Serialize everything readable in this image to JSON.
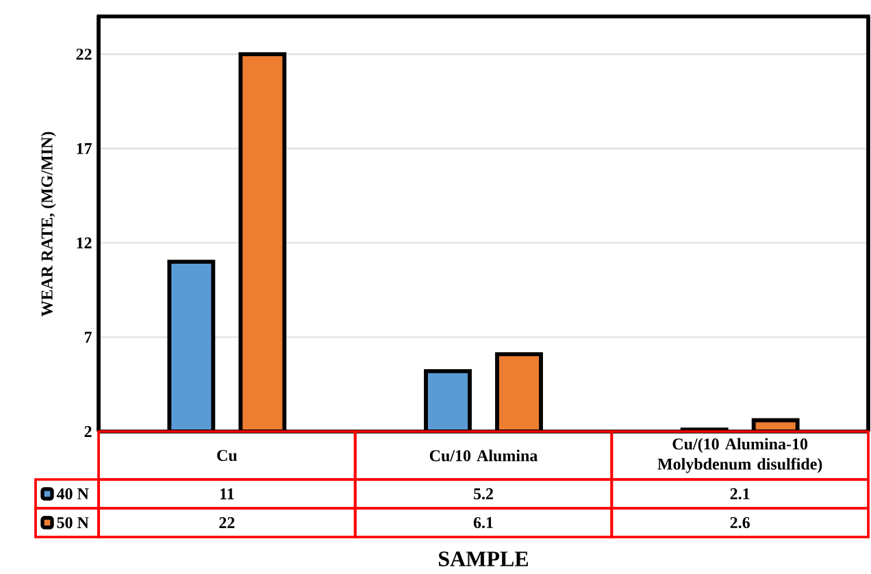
{
  "chart_data": {
    "type": "bar",
    "ylabel": "WEAR RATE, (MG/MIN)",
    "xlabel": "SAMPLE",
    "categories": [
      "Cu",
      "Cu/10 Alumina",
      "Cu/(10 Alumina-10 Molybdenum disulfide)"
    ],
    "series": [
      {
        "name": "40 N",
        "color": "#5b9bd5",
        "values": [
          11,
          5.2,
          2.1
        ]
      },
      {
        "name": "50 N",
        "color": "#ed7d31",
        "values": [
          22,
          6.1,
          2.6
        ]
      }
    ],
    "ylim": [
      2,
      24
    ],
    "yticks": [
      2,
      7,
      12,
      17,
      22
    ],
    "grid": "y",
    "data_labels": true,
    "legend": "bottom left"
  }
}
